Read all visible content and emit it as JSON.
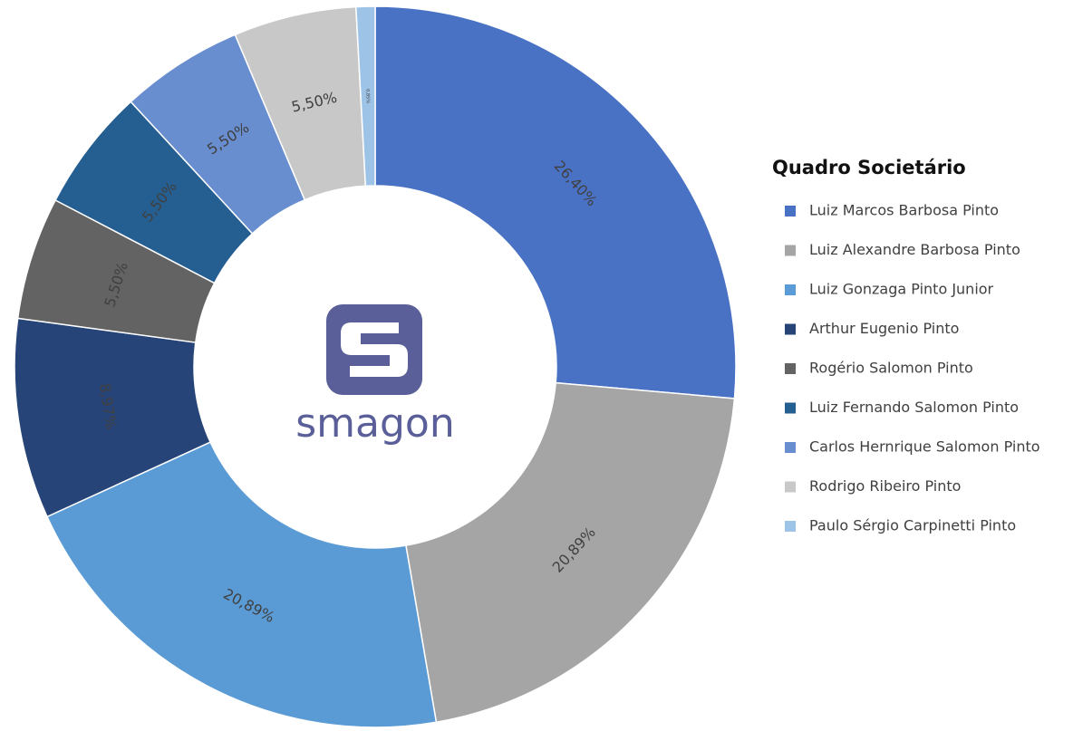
{
  "chart_data": {
    "type": "donut",
    "legend_title": "Quadro Societário",
    "center_text": "smagon",
    "categories": [
      "Luiz Marcos Barbosa Pinto",
      "Luiz Alexandre Barbosa  Pinto",
      "Luiz Gonzaga Pinto Junior",
      "Arthur Eugenio Pinto",
      "Rogério Salomon Pinto",
      "Luiz Fernando Salomon Pinto",
      "Carlos Hernrique Salomon Pinto",
      "Rodrigo Ribeiro Pinto",
      "Paulo Sérgio Carpinetti Pinto"
    ],
    "values": [
      26.4,
      20.89,
      20.89,
      8.97,
      5.5,
      5.5,
      5.5,
      5.5,
      0.85
    ],
    "value_labels": [
      "26,40%",
      "20,89%",
      "20,89%",
      "8,97%",
      "5,50%",
      "5,50%",
      "5,50%",
      "5,50%",
      "0,85%"
    ],
    "colors": [
      "#4a72c4",
      "#a5a5a5",
      "#5b9bd5",
      "#264478",
      "#636363",
      "#255e91",
      "#698ed0",
      "#c8c8c8",
      "#9dc3e6"
    ],
    "legend": "right"
  }
}
